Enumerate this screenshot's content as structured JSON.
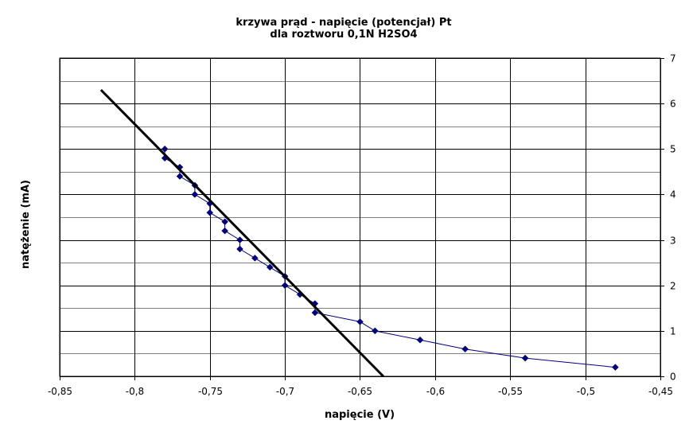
{
  "chart_data": {
    "type": "scatter",
    "title": [
      "krzywa prąd - napięcie (potencjał) Pt",
      "dla roztworu 0,1N H2SO4"
    ],
    "xlabel": "napięcie (V)",
    "ylabel": "natężenie (mA)",
    "xlim": [
      -0.85,
      -0.45
    ],
    "ylim": [
      0,
      7
    ],
    "x_ticks": [
      "-0,85",
      "-0,8",
      "-0,75",
      "-0,7",
      "-0,65",
      "-0,6",
      "-0,55",
      "-0,5",
      "-0,45"
    ],
    "x_tick_values": [
      -0.85,
      -0.8,
      -0.75,
      -0.7,
      -0.65,
      -0.6,
      -0.55,
      -0.5,
      -0.45
    ],
    "y_ticks": [
      "0",
      "1",
      "2",
      "3",
      "4",
      "5",
      "6",
      "7"
    ],
    "y_tick_values": [
      0,
      1,
      2,
      3,
      4,
      5,
      6,
      7
    ],
    "y_minor_step": 0.5,
    "grid": true,
    "legend": "none",
    "series": [
      {
        "color": "#000080",
        "marker": "diamond",
        "line": true,
        "points": [
          [
            -0.78,
            5.0
          ],
          [
            -0.78,
            4.8
          ],
          [
            -0.77,
            4.6
          ],
          [
            -0.77,
            4.4
          ],
          [
            -0.76,
            4.2
          ],
          [
            -0.76,
            4.0
          ],
          [
            -0.75,
            3.8
          ],
          [
            -0.75,
            3.6
          ],
          [
            -0.74,
            3.4
          ],
          [
            -0.74,
            3.2
          ],
          [
            -0.73,
            3.0
          ],
          [
            -0.73,
            2.8
          ],
          [
            -0.72,
            2.6
          ],
          [
            -0.71,
            2.4
          ],
          [
            -0.7,
            2.2
          ],
          [
            -0.7,
            2.0
          ],
          [
            -0.69,
            1.8
          ],
          [
            -0.68,
            1.6
          ],
          [
            -0.68,
            1.4
          ],
          [
            -0.65,
            1.2
          ],
          [
            -0.64,
            1.0
          ],
          [
            -0.61,
            0.8
          ],
          [
            -0.58,
            0.6
          ],
          [
            -0.54,
            0.4
          ],
          [
            -0.48,
            0.2
          ]
        ]
      },
      {
        "color": "#000000",
        "marker": "none",
        "line": true,
        "points": [
          [
            -0.8225,
            6.3
          ],
          [
            -0.6345,
            0.0
          ]
        ]
      }
    ]
  }
}
